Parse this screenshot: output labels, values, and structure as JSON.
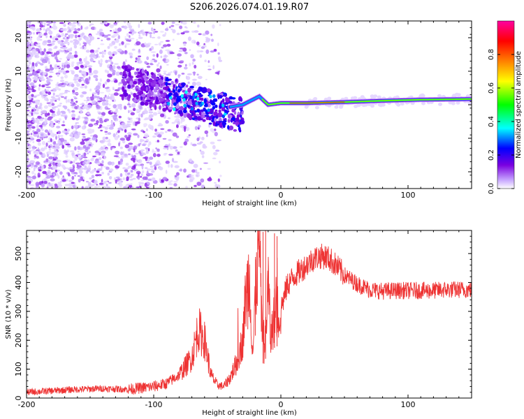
{
  "title": "S206.2026.074.01.19.R07",
  "chart_data": [
    {
      "type": "heatmap",
      "xlabel": "Height of straight line (km)",
      "ylabel": "Frequency (Hz)",
      "xlim": [
        -200,
        150
      ],
      "ylim": [
        -25,
        25
      ],
      "xticks": [
        -200,
        -100,
        0,
        100
      ],
      "yticks": [
        -20,
        -10,
        0,
        10,
        20
      ],
      "colorbar": {
        "label": "Normalized spectral amplitude",
        "range": [
          0,
          1
        ],
        "ticks": [
          "0.0",
          "0.2",
          "0.4",
          "0.6",
          "0.8"
        ],
        "colors": [
          "#ffffff",
          "#c8a8ff",
          "#7a00e0",
          "#0000ff",
          "#00ffff",
          "#00ff00",
          "#ffff00",
          "#ff8000",
          "#ff0000",
          "#ff00a0"
        ]
      },
      "ridge": [
        {
          "x": -110,
          "f": 6,
          "amp": 0.25
        },
        {
          "x": -90,
          "f": 4,
          "amp": 0.3
        },
        {
          "x": -75,
          "f": 1,
          "amp": 0.35
        },
        {
          "x": -60,
          "f": -2,
          "amp": 0.4
        },
        {
          "x": -45,
          "f": -1,
          "amp": 0.35
        },
        {
          "x": -30,
          "f": 0,
          "amp": 0.5
        },
        {
          "x": -17,
          "f": 2.5,
          "amp": 0.55
        },
        {
          "x": -10,
          "f": 0,
          "amp": 0.7
        },
        {
          "x": 0,
          "f": 0.5,
          "amp": 0.8
        },
        {
          "x": 20,
          "f": 0.5,
          "amp": 0.95
        },
        {
          "x": 50,
          "f": 0.8,
          "amp": 0.85
        },
        {
          "x": 80,
          "f": 1.2,
          "amp": 0.8
        },
        {
          "x": 110,
          "f": 1.5,
          "amp": 0.8
        },
        {
          "x": 150,
          "f": 1.7,
          "amp": 0.85
        }
      ]
    },
    {
      "type": "line",
      "xlabel": "Height of straight line (km)",
      "ylabel": "SNR (10 * v/v)",
      "xlim": [
        -200,
        150
      ],
      "ylim": [
        0,
        580
      ],
      "xticks": [
        -200,
        -100,
        0,
        100
      ],
      "yticks": [
        0,
        100,
        200,
        300,
        400,
        500
      ],
      "color": "#ee3333",
      "series": [
        {
          "name": "SNR",
          "x": [
            -200,
            -180,
            -160,
            -140,
            -120,
            -100,
            -90,
            -80,
            -70,
            -65,
            -60,
            -55,
            -50,
            -45,
            -40,
            -35,
            -30,
            -28,
            -25,
            -22,
            -20,
            -17,
            -15,
            -13,
            -10,
            -8,
            -5,
            0,
            5,
            10,
            15,
            20,
            25,
            30,
            35,
            40,
            45,
            50,
            60,
            70,
            80,
            90,
            100,
            110,
            120,
            130,
            140,
            150
          ],
          "y": [
            20,
            25,
            30,
            33,
            30,
            40,
            50,
            80,
            140,
            240,
            200,
            80,
            45,
            40,
            70,
            120,
            200,
            330,
            430,
            150,
            360,
            540,
            260,
            140,
            400,
            200,
            290,
            310,
            390,
            420,
            440,
            460,
            480,
            490,
            490,
            475,
            450,
            425,
            395,
            375,
            370,
            372,
            372,
            372,
            372,
            375,
            375,
            375
          ]
        }
      ]
    }
  ]
}
